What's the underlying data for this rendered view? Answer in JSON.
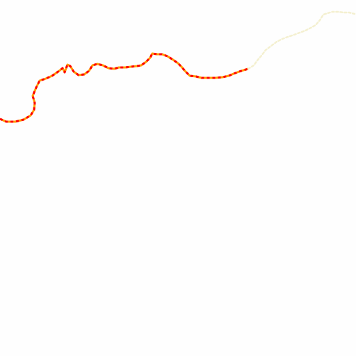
{
  "map": {
    "background": "#fefefe",
    "routes": [
      {
        "name": "highlighted-route",
        "color_dash": "#ff0000",
        "color_gap": "#ff9900",
        "style": "dashed"
      },
      {
        "name": "faint-route",
        "color_dash": "#f4f0d0",
        "color_gap": "#fbf7e6",
        "style": "dotted"
      }
    ]
  }
}
